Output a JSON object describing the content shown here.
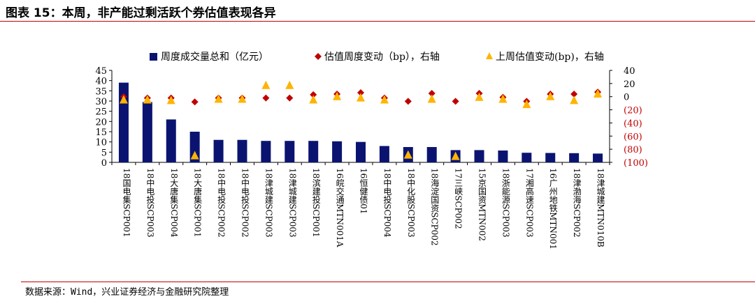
{
  "title": "图表 15：本周，非产能过剩活跃个券估值表现各异",
  "source": "数据来源：Wind，兴业证券经济与金融研究院整理",
  "colors": {
    "bar": "#0a1470",
    "diamond": "#c00000",
    "triangle": "#ffb400",
    "negative_tick": "#c00000"
  },
  "chart_data": {
    "type": "bar",
    "categories": [
      "18国电集SCP001",
      "18中电投SCP003",
      "18大唐集SCP004",
      "18大唐集SCP001",
      "18中电投SCP002",
      "18中电投SCP002",
      "18津城建SCP003",
      "18津城建SCP003",
      "18滨建投SCP001",
      "16皖交通MTN001A",
      "16恒健债01",
      "18中电投SCP004",
      "18中化股SCP003",
      "18海淀国资SCP002",
      "17三峡SCP002",
      "15京国资MTN002",
      "18浙能源SCP003",
      "17湘高速SCP003",
      "16广州地铁MTN001",
      "18津渤海SCP002",
      "18津城建MTN010B"
    ],
    "series": [
      {
        "name": "周度成交量总和（亿元）",
        "axis": "left",
        "mark": "bar",
        "values": [
          39,
          29.5,
          21,
          15,
          11,
          11,
          10.5,
          10.5,
          10.5,
          10.3,
          10,
          8,
          7.5,
          7.5,
          6,
          6,
          5.8,
          4.7,
          4.6,
          4.5,
          4.3
        ]
      },
      {
        "name": "估值周度变动（bp），右轴",
        "axis": "right",
        "mark": "diamond",
        "values": [
          0,
          -2,
          -2,
          -8,
          -2,
          -2,
          -2,
          -2,
          3,
          4,
          6,
          -2,
          -7,
          5,
          -7,
          5,
          -1,
          -7,
          4,
          4,
          7
        ]
      },
      {
        "name": "上周估值变动(bp)，右轴",
        "axis": "right",
        "mark": "triangle",
        "values": [
          -4,
          -4,
          -5,
          -89,
          -3,
          -3,
          18,
          18,
          -4,
          1,
          -1,
          -4,
          -88,
          -3,
          -90,
          0,
          -3,
          -11,
          1,
          -5,
          5
        ]
      }
    ],
    "left_axis": {
      "min": 0,
      "max": 45,
      "ticks": [
        "0",
        "5",
        "10",
        "15",
        "20",
        "25",
        "30",
        "35",
        "40",
        "45"
      ]
    },
    "right_axis": {
      "min": -100,
      "max": 40,
      "ticks": [
        "(100)",
        "(80)",
        "(60)",
        "(40)",
        "(20)",
        "0",
        "20",
        "40"
      ]
    },
    "legend_position": "top",
    "grid": false
  }
}
